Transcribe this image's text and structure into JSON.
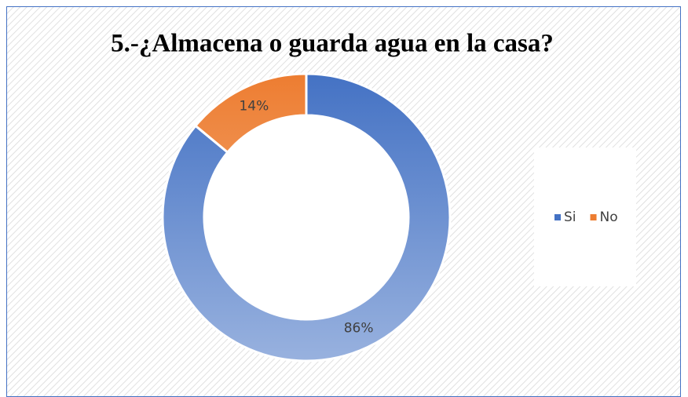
{
  "chart_data": {
    "type": "donut",
    "title": "5.-¿Almacena o guarda agua en la casa?",
    "categories": [
      "Si",
      "No"
    ],
    "values": [
      86,
      14
    ],
    "value_labels": [
      "86%",
      "14%"
    ],
    "colors": [
      "#4472c4",
      "#ed7d31"
    ],
    "legend": "right"
  }
}
